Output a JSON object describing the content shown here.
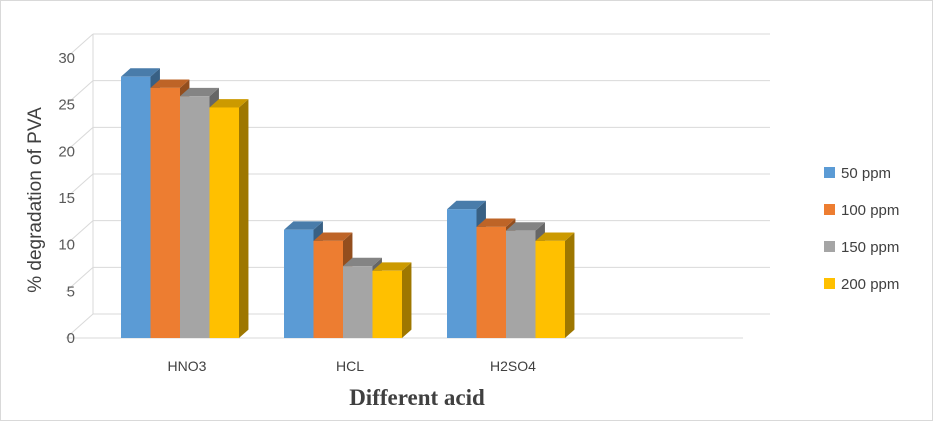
{
  "chart_data": {
    "type": "bar",
    "title": "",
    "xlabel": "Different acid",
    "ylabel": "% degradation of PVA",
    "ylim": [
      0,
      30
    ],
    "yticks": [
      0,
      5,
      10,
      15,
      20,
      25,
      30
    ],
    "categories": [
      "HNO3",
      "HCL",
      "H2SO4"
    ],
    "series": [
      {
        "name": "50 ppm",
        "values": [
          28,
          11.6,
          13.8
        ],
        "color": "#5b9bd5"
      },
      {
        "name": "100 ppm",
        "values": [
          26.8,
          10.4,
          11.9
        ],
        "color": "#ed7d31"
      },
      {
        "name": "150 ppm",
        "values": [
          25.9,
          7.7,
          11.5
        ],
        "color": "#a5a5a5"
      },
      {
        "name": "200 ppm",
        "values": [
          24.7,
          7.2,
          10.4
        ],
        "color": "#ffc000"
      }
    ],
    "grid": true,
    "legend_position": "right",
    "style": "3d-clustered-column"
  }
}
